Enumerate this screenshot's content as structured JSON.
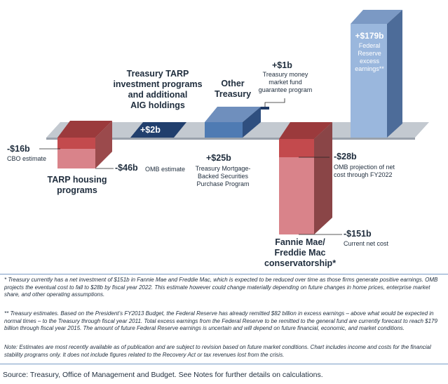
{
  "chart_data": {
    "type": "bar",
    "subtype": "waterfall-style 3D bars relative to zero line",
    "unit": "$ billions",
    "items": [
      {
        "id": "tarp_housing",
        "label": "TARP housing programs",
        "values": [
          {
            "name": "CBO estimate",
            "value": -16,
            "value_label": "-$16b",
            "note": "CBO estimate"
          },
          {
            "name": "OMB estimate",
            "value": -46,
            "value_label": "-$46b",
            "note": "OMB estimate"
          }
        ]
      },
      {
        "id": "tarp_investment",
        "label": "Treasury TARP investment programs and additional AIG holdings",
        "value": 2,
        "value_label": "+$2b"
      },
      {
        "id": "mbs",
        "label": "Treasury Mortgage-Backed Securities Purchase Program",
        "value": 25,
        "value_label": "+$25b"
      },
      {
        "id": "money_market",
        "label": "Treasury money market fund guarantee program",
        "value": 1,
        "value_label": "+$1b"
      },
      {
        "id": "fannie_freddie",
        "label": "Fannie Mae/ Freddie Mac conservatorship*",
        "values": [
          {
            "name": "OMB projection of net cost through FY2022",
            "value": -28,
            "value_label": "-$28b"
          },
          {
            "name": "Current net cost",
            "value": -151,
            "value_label": "-$151b"
          }
        ]
      },
      {
        "id": "fed_excess",
        "label": "Federal Reserve excess earnings**",
        "value": 179,
        "value_label": "+$179b"
      }
    ],
    "colors": {
      "dark_red": "#9b3a3c",
      "light_red": "#d9838a",
      "mid_red": "#c34a4d",
      "navy": "#213f6d",
      "blue": "#4f7bb3",
      "light_blue": "#9ab7dd",
      "axis_gray": "#b8bec6"
    }
  },
  "labels": {
    "tarp_housing": {
      "title_line1": "TARP housing",
      "title_line2": "programs",
      "cbo_value": "-$16b",
      "cbo_note": "CBO estimate",
      "omb_value": "-$46b",
      "omb_note": "OMB estimate"
    },
    "tarp_investment": {
      "title_line1": "Treasury TARP",
      "title_line2": "investment programs",
      "title_line3": "and additional",
      "title_line4": "AIG holdings",
      "value": "+$2b"
    },
    "other_treasury": {
      "title_line1": "Other",
      "title_line2": "Treasury"
    },
    "money_market": {
      "value": "+$1b",
      "line1": "Treasury money",
      "line2": "market fund",
      "line3": "guarantee program"
    },
    "mbs": {
      "value": "+$25b",
      "line1": "Treasury Mortgage-",
      "line2": "Backed Securities",
      "line3": "Purchase Program"
    },
    "fannie": {
      "title_line1": "Fannie Mae/",
      "title_line2": "Freddie Mac",
      "title_line3": "conservatorship*",
      "proj_value": "-$28b",
      "proj_line1": "OMB projection of net",
      "proj_line2": "cost through FY2022",
      "cur_value": "-$151b",
      "cur_line1": "Current net cost"
    },
    "fed": {
      "value": "+$179b",
      "line1": "Federal",
      "line2": "Reserve",
      "line3": "excess",
      "line4": "earnings**"
    }
  },
  "footnotes": {
    "note1": "* Treasury currently has a net investment of $151b in Fannie Mae and Freddie Mac, which is expected to be reduced over time as those firms generate positive earnings. OMB projects the eventual cost to fall to $28b by fiscal year 2022. This estimate however could change materially depending on future changes in home prices, enterprise market share, and other operating assumptions.",
    "note2": "** Treasury estimates. Based on the President’s FY2013 Budget, the Federal Reserve has already remitted $82 billion in excess earnings – above what would be expected in normal times – to the Treasury through fiscal year 2011. Total excess earnings from the Federal Reserve to be remitted to the general fund are currently forecast to reach $179 billion through fiscal year 2015. The amount of future Federal Reserve earnings is uncertain and will depend on future financial, economic, and market conditions.",
    "note3": "Note: Estimates are most recently available as of publication and are subject to revision based on future market conditions. Chart includes income and costs for the financial stability programs only. It does not include figures related to the Recovery Act or tax revenues lost from the crisis.",
    "source": "Source: Treasury, Office of Management and Budget. See Notes for further details on calculations."
  }
}
